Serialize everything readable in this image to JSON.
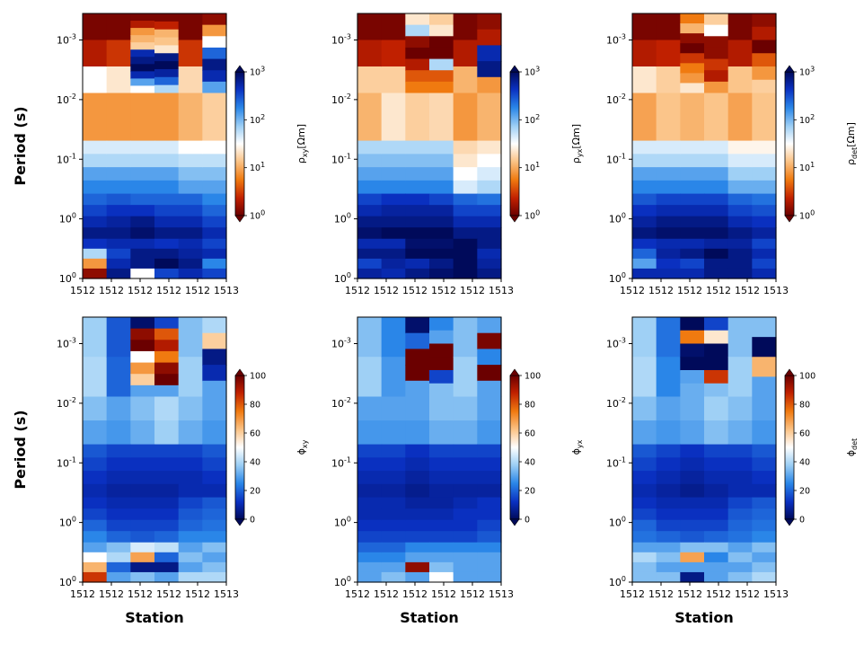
{
  "stations": [
    "1512",
    "1512",
    "1512",
    "1512",
    "1512",
    "1513"
  ],
  "ylabel": "Period (s)",
  "xlabel": "Station",
  "y_ticks": [
    {
      "base": "10",
      "exp": "-3"
    },
    {
      "base": "10",
      "exp": "-2"
    },
    {
      "base": "10",
      "exp": "-1"
    },
    {
      "base": "10",
      "exp": "0"
    },
    {
      "base": "10",
      "exp": "0"
    }
  ],
  "rho_ticks": [
    {
      "base": "10",
      "exp": "0"
    },
    {
      "base": "10",
      "exp": "1"
    },
    {
      "base": "10",
      "exp": "2"
    },
    {
      "base": "10",
      "exp": "3"
    }
  ],
  "phase_ticks": [
    "0",
    "20",
    "40",
    "60",
    "80",
    "100"
  ],
  "panels": [
    {
      "cb_label_sym": "ρ",
      "cb_label_sub": "xy",
      "cb_label_unit": "[Ωm]",
      "kind": "rho"
    },
    {
      "cb_label_sym": "ρ",
      "cb_label_sub": "yx",
      "cb_label_unit": "[Ωm]",
      "kind": "rho"
    },
    {
      "cb_label_sym": "ρ",
      "cb_label_sub": "det",
      "cb_label_unit": "[Ωm]",
      "kind": "rho"
    },
    {
      "cb_label_sym": "ϕ",
      "cb_label_sub": "xy",
      "cb_label_unit": "",
      "kind": "phase"
    },
    {
      "cb_label_sym": "ϕ",
      "cb_label_sub": "yx",
      "cb_label_unit": "",
      "kind": "phase"
    },
    {
      "cb_label_sym": "ϕ",
      "cb_label_sub": "det",
      "cb_label_unit": "",
      "kind": "phase"
    }
  ],
  "chart_data": [
    {
      "type": "heatmap",
      "quantity": "rho_xy",
      "colormap": "red-white-blue",
      "cbar_range": [
        1,
        1000
      ],
      "cbar_scale": "log",
      "x": [
        "1512",
        "1512",
        "1512",
        "1512",
        "1512",
        "1513"
      ],
      "bands": [
        [
          [
            0.02,
            0.1,
            0.5
          ],
          [
            0.02,
            0.15,
            0.45
          ],
          [
            0.02,
            0.1,
            0.3,
            0.35,
            0.4,
            0.9,
            0.95,
            1.0,
            0.9,
            0.7,
            0.5
          ],
          [
            0.02,
            0.12,
            0.35,
            0.38,
            0.45,
            0.95,
            1.0,
            0.92,
            0.8,
            0.6
          ],
          [
            0.02,
            0.15,
            0.42
          ],
          [
            0.05,
            0.3,
            0.5,
            0.8,
            0.95,
            0.9,
            0.7
          ]
        ],
        [
          [
            0.3
          ],
          [
            0.3
          ],
          [
            0.3
          ],
          [
            0.3
          ],
          [
            0.35
          ],
          [
            0.4
          ]
        ],
        [
          [
            0.55,
            0.6,
            0.7,
            0.75
          ],
          [
            0.55,
            0.6,
            0.7,
            0.75
          ],
          [
            0.55,
            0.6,
            0.7,
            0.75
          ],
          [
            0.55,
            0.6,
            0.7,
            0.75
          ],
          [
            0.5,
            0.58,
            0.65,
            0.7
          ],
          [
            0.5,
            0.58,
            0.65,
            0.7
          ]
        ],
        [
          [
            0.8,
            0.85,
            0.9,
            0.95
          ],
          [
            0.82,
            0.88,
            0.92,
            0.95
          ],
          [
            0.8,
            0.88,
            0.95,
            0.98
          ],
          [
            0.8,
            0.85,
            0.9,
            0.95
          ],
          [
            0.8,
            0.85,
            0.9,
            0.95
          ],
          [
            0.75,
            0.8,
            0.85,
            0.9
          ]
        ],
        [
          [
            0.88,
            0.6,
            0.3,
            0.05
          ],
          [
            0.9,
            0.85,
            0.9,
            0.95
          ],
          [
            0.9,
            0.95,
            0.95,
            0.5
          ],
          [
            0.88,
            0.95,
            1.0,
            0.85
          ],
          [
            0.9,
            0.92,
            0.95,
            0.9
          ],
          [
            0.85,
            0.9,
            0.75,
            0.85
          ]
        ]
      ]
    },
    {
      "type": "heatmap",
      "quantity": "rho_yx",
      "colormap": "red-white-blue",
      "cbar_range": [
        1,
        1000
      ],
      "cbar_scale": "log",
      "x": [
        "1512",
        "1512",
        "1512",
        "1512",
        "1512",
        "1513"
      ],
      "bands": [
        [
          [
            0.02,
            0.1,
            0.4
          ],
          [
            0.02,
            0.12,
            0.4
          ],
          [
            0.45,
            0.6,
            0.05,
            0.0,
            0.1,
            0.2,
            0.25
          ],
          [
            0.4,
            0.45,
            0.0,
            0.0,
            0.6,
            0.2,
            0.25
          ],
          [
            0.02,
            0.1,
            0.35
          ],
          [
            0.05,
            0.1,
            0.9,
            0.95,
            0.3
          ]
        ],
        [
          [
            0.35
          ],
          [
            0.45
          ],
          [
            0.4
          ],
          [
            0.42
          ],
          [
            0.3
          ],
          [
            0.35
          ]
        ],
        [
          [
            0.6,
            0.65,
            0.7,
            0.75
          ],
          [
            0.6,
            0.65,
            0.7,
            0.75
          ],
          [
            0.6,
            0.65,
            0.7,
            0.75
          ],
          [
            0.6,
            0.65,
            0.7,
            0.75
          ],
          [
            0.42,
            0.45,
            0.5,
            0.55
          ],
          [
            0.45,
            0.5,
            0.55,
            0.6
          ]
        ],
        [
          [
            0.85,
            0.9,
            0.95,
            0.98
          ],
          [
            0.88,
            0.92,
            0.95,
            1.0
          ],
          [
            0.88,
            0.92,
            0.95,
            1.0
          ],
          [
            0.85,
            0.92,
            0.95,
            1.0
          ],
          [
            0.8,
            0.85,
            0.9,
            0.95
          ],
          [
            0.78,
            0.85,
            0.9,
            0.95
          ]
        ],
        [
          [
            0.9,
            0.95,
            0.85,
            0.92
          ],
          [
            0.9,
            0.95,
            0.92,
            0.9
          ],
          [
            0.98,
            1.0,
            0.9,
            0.95
          ],
          [
            0.98,
            1.0,
            0.95,
            0.98
          ],
          [
            1.0,
            1.0,
            1.0,
            1.0
          ],
          [
            0.95,
            0.9,
            0.92,
            0.95
          ]
        ]
      ]
    },
    {
      "type": "heatmap",
      "quantity": "rho_det",
      "colormap": "red-white-blue",
      "cbar_range": [
        1,
        1000
      ],
      "cbar_scale": "log",
      "x": [
        "1512",
        "1512",
        "1512",
        "1512",
        "1512",
        "1513"
      ],
      "bands": [
        [
          [
            0.02,
            0.1,
            0.45
          ],
          [
            0.02,
            0.12,
            0.4
          ],
          [
            0.25,
            0.35,
            0.05,
            0.0,
            0.15,
            0.25,
            0.3,
            0.45
          ],
          [
            0.4,
            0.5,
            0.05,
            0.05,
            0.15,
            0.1,
            0.3
          ],
          [
            0.02,
            0.1,
            0.38
          ],
          [
            0.05,
            0.1,
            0.0,
            0.2,
            0.3,
            0.4
          ]
        ],
        [
          [
            0.32
          ],
          [
            0.38
          ],
          [
            0.35
          ],
          [
            0.38
          ],
          [
            0.32
          ],
          [
            0.38
          ]
        ],
        [
          [
            0.55,
            0.6,
            0.7,
            0.75
          ],
          [
            0.55,
            0.6,
            0.7,
            0.75
          ],
          [
            0.55,
            0.6,
            0.7,
            0.75
          ],
          [
            0.55,
            0.6,
            0.7,
            0.75
          ],
          [
            0.48,
            0.55,
            0.62,
            0.68
          ],
          [
            0.48,
            0.55,
            0.62,
            0.68
          ]
        ],
        [
          [
            0.82,
            0.88,
            0.92,
            0.96
          ],
          [
            0.85,
            0.9,
            0.95,
            0.98
          ],
          [
            0.85,
            0.9,
            0.95,
            0.98
          ],
          [
            0.85,
            0.9,
            0.95,
            0.98
          ],
          [
            0.8,
            0.85,
            0.9,
            0.95
          ],
          [
            0.78,
            0.83,
            0.88,
            0.92
          ]
        ],
        [
          [
            0.88,
            0.8,
            0.7,
            0.9
          ],
          [
            0.9,
            0.92,
            0.88,
            0.9
          ],
          [
            0.9,
            0.95,
            0.85,
            0.9
          ],
          [
            0.92,
            1.0,
            0.95,
            0.95
          ],
          [
            0.92,
            0.95,
            0.95,
            0.95
          ],
          [
            0.85,
            0.9,
            0.85,
            0.9
          ]
        ]
      ]
    },
    {
      "type": "heatmap",
      "quantity": "phi_xy",
      "colormap": "blue-white-red",
      "cbar_range": [
        0,
        100
      ],
      "cbar_scale": "linear",
      "x": [
        "1512",
        "1512",
        "1512",
        "1512",
        "1512",
        "1513"
      ],
      "bands": [
        [
          [
            0.38,
            0.4
          ],
          [
            0.18,
            0.2
          ],
          [
            0.02,
            0.95,
            1.0,
            0.5,
            0.7,
            0.6,
            0.3
          ],
          [
            0.15,
            0.8,
            0.9,
            0.75,
            0.95,
            1.0,
            0.3
          ],
          [
            0.35,
            0.38
          ],
          [
            0.4,
            0.6,
            0.05,
            0.1,
            0.3
          ]
        ],
        [
          [
            0.35,
            0.3
          ],
          [
            0.3,
            0.28
          ],
          [
            0.35,
            0.32
          ],
          [
            0.4,
            0.38
          ],
          [
            0.35,
            0.32
          ],
          [
            0.3,
            0.28
          ]
        ],
        [
          [
            0.18,
            0.15,
            0.12,
            0.1
          ],
          [
            0.15,
            0.12,
            0.1,
            0.08
          ],
          [
            0.15,
            0.12,
            0.1,
            0.08
          ],
          [
            0.15,
            0.12,
            0.1,
            0.08
          ],
          [
            0.15,
            0.12,
            0.1,
            0.1
          ],
          [
            0.18,
            0.15,
            0.12,
            0.1
          ]
        ],
        [
          [
            0.12,
            0.15,
            0.2,
            0.25
          ],
          [
            0.1,
            0.12,
            0.15,
            0.2
          ],
          [
            0.1,
            0.12,
            0.15,
            0.18
          ],
          [
            0.1,
            0.12,
            0.15,
            0.2
          ],
          [
            0.15,
            0.18,
            0.2,
            0.25
          ],
          [
            0.18,
            0.2,
            0.22,
            0.25
          ]
        ],
        [
          [
            0.3,
            0.5,
            0.65,
            0.85
          ],
          [
            0.35,
            0.4,
            0.2,
            0.3
          ],
          [
            0.45,
            0.68,
            0.05,
            0.35
          ],
          [
            0.42,
            0.2,
            0.05,
            0.3
          ],
          [
            0.3,
            0.35,
            0.3,
            0.4
          ],
          [
            0.35,
            0.3,
            0.35,
            0.4
          ]
        ]
      ]
    },
    {
      "type": "heatmap",
      "quantity": "phi_yx",
      "colormap": "blue-white-red",
      "cbar_range": [
        0,
        100
      ],
      "cbar_scale": "linear",
      "x": [
        "1512",
        "1512",
        "1512",
        "1512",
        "1512",
        "1513"
      ],
      "bands": [
        [
          [
            0.35,
            0.38
          ],
          [
            0.25,
            0.28
          ],
          [
            0.02,
            0.2,
            1.0,
            1.0,
            0.3
          ],
          [
            0.25,
            0.3,
            1.0,
            1.0,
            0.15,
            0.35
          ],
          [
            0.35,
            0.38
          ],
          [
            0.3,
            0.98,
            0.25,
            1.0,
            0.3
          ]
        ],
        [
          [
            0.3,
            0.28
          ],
          [
            0.3,
            0.28
          ],
          [
            0.3,
            0.28
          ],
          [
            0.35,
            0.32
          ],
          [
            0.35,
            0.32
          ],
          [
            0.3,
            0.28
          ]
        ],
        [
          [
            0.15,
            0.12,
            0.1,
            0.08
          ],
          [
            0.15,
            0.12,
            0.1,
            0.08
          ],
          [
            0.12,
            0.1,
            0.08,
            0.06
          ],
          [
            0.15,
            0.12,
            0.1,
            0.08
          ],
          [
            0.15,
            0.12,
            0.1,
            0.08
          ],
          [
            0.15,
            0.12,
            0.1,
            0.08
          ]
        ],
        [
          [
            0.1,
            0.1,
            0.12,
            0.15
          ],
          [
            0.1,
            0.1,
            0.12,
            0.15
          ],
          [
            0.08,
            0.1,
            0.12,
            0.15
          ],
          [
            0.08,
            0.1,
            0.12,
            0.15
          ],
          [
            0.1,
            0.12,
            0.12,
            0.15
          ],
          [
            0.12,
            0.12,
            0.15,
            0.18
          ]
        ],
        [
          [
            0.2,
            0.25,
            0.3,
            0.3
          ],
          [
            0.2,
            0.25,
            0.3,
            0.35
          ],
          [
            0.25,
            0.3,
            0.95,
            0.3
          ],
          [
            0.25,
            0.3,
            0.35,
            0.5
          ],
          [
            0.25,
            0.3,
            0.3,
            0.3
          ],
          [
            0.25,
            0.3,
            0.3,
            0.3
          ]
        ]
      ]
    },
    {
      "type": "heatmap",
      "quantity": "phi_det",
      "colormap": "blue-white-red",
      "cbar_range": [
        0,
        100
      ],
      "cbar_scale": "linear",
      "x": [
        "1512",
        "1512",
        "1512",
        "1512",
        "1512",
        "1513"
      ],
      "bands": [
        [
          [
            0.38,
            0.4
          ],
          [
            0.22,
            0.25
          ],
          [
            0.0,
            0.75,
            0.02,
            0.0,
            0.3,
            0.32
          ],
          [
            0.15,
            0.55,
            0.0,
            0.0,
            0.85,
            0.35
          ],
          [
            0.35,
            0.38
          ],
          [
            0.35,
            0.0,
            0.65,
            0.3
          ]
        ],
        [
          [
            0.35,
            0.3
          ],
          [
            0.3,
            0.28
          ],
          [
            0.32,
            0.3
          ],
          [
            0.38,
            0.35
          ],
          [
            0.35,
            0.32
          ],
          [
            0.3,
            0.28
          ]
        ],
        [
          [
            0.18,
            0.15,
            0.12,
            0.1
          ],
          [
            0.15,
            0.12,
            0.1,
            0.08
          ],
          [
            0.12,
            0.1,
            0.08,
            0.06
          ],
          [
            0.15,
            0.12,
            0.1,
            0.08
          ],
          [
            0.15,
            0.12,
            0.1,
            0.1
          ],
          [
            0.18,
            0.15,
            0.12,
            0.1
          ]
        ],
        [
          [
            0.12,
            0.15,
            0.2,
            0.22
          ],
          [
            0.1,
            0.12,
            0.15,
            0.2
          ],
          [
            0.1,
            0.12,
            0.15,
            0.18
          ],
          [
            0.1,
            0.12,
            0.15,
            0.2
          ],
          [
            0.15,
            0.18,
            0.2,
            0.22
          ],
          [
            0.18,
            0.2,
            0.22,
            0.25
          ]
        ],
        [
          [
            0.3,
            0.4,
            0.35,
            0.35
          ],
          [
            0.3,
            0.35,
            0.3,
            0.35
          ],
          [
            0.35,
            0.68,
            0.3,
            0.05
          ],
          [
            0.35,
            0.25,
            0.3,
            0.3
          ],
          [
            0.3,
            0.35,
            0.3,
            0.35
          ],
          [
            0.35,
            0.3,
            0.35,
            0.4
          ]
        ]
      ]
    }
  ]
}
